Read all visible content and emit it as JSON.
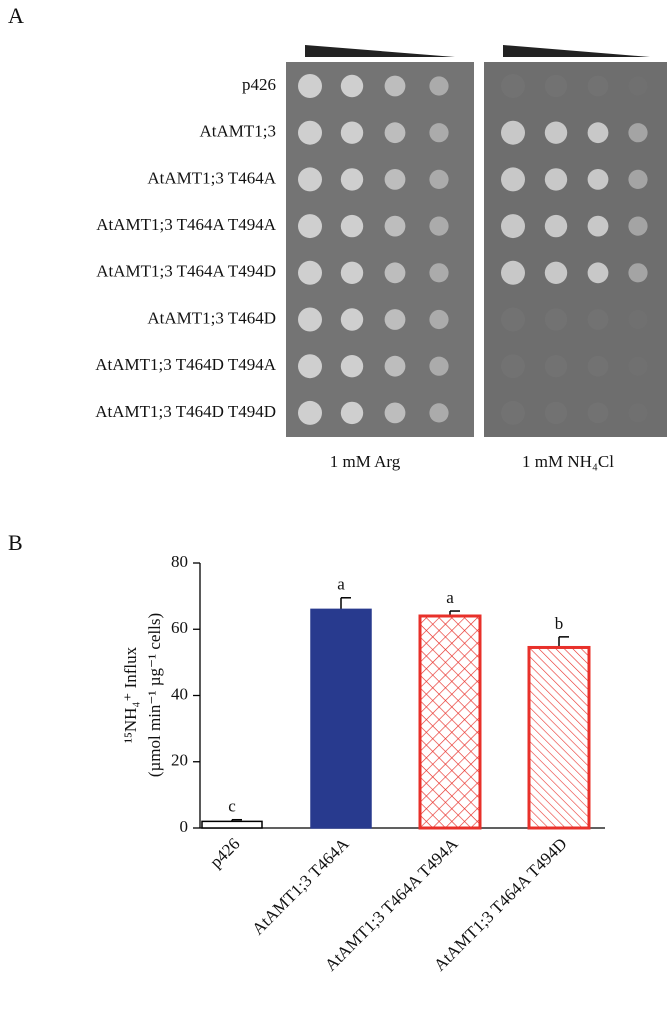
{
  "panel_a": {
    "label": "A",
    "strains": [
      "p426",
      "AtAMT1;3",
      "AtAMT1;3 T464A",
      "AtAMT1;3 T464A T494A",
      "AtAMT1;3 T464A T494D",
      "AtAMT1;3 T464D",
      "AtAMT1;3 T464D T494A",
      "AtAMT1;3 T464D T494D"
    ],
    "conditions": [
      "1 mM Arg",
      "1 mM NH₄Cl"
    ]
  },
  "chart_data": {
    "type": "bar",
    "panel_label": "B",
    "y_label": [
      "¹⁵NH₄⁺ Influx",
      "(µmol min⁻¹ µg⁻¹ cells)"
    ],
    "categories": [
      "p426",
      "AtAMT1;3 T464A",
      "AtAMT1;3 T464A T494A",
      "AtAMT1;3 T464A T494D"
    ],
    "values": [
      2,
      66,
      64,
      54.5
    ],
    "errors": [
      0.5,
      3.5,
      1.5,
      3.2
    ],
    "annotations": [
      "c",
      "a",
      "a",
      "b"
    ],
    "colors": [
      "#000000",
      "#283a8e",
      "#e8302a",
      "#e8302a"
    ],
    "fills": [
      "empty",
      "solid",
      "crosshatch",
      "diagonal"
    ],
    "ylim": [
      0,
      80
    ],
    "yticks": [
      0,
      20,
      40,
      60,
      80
    ]
  }
}
